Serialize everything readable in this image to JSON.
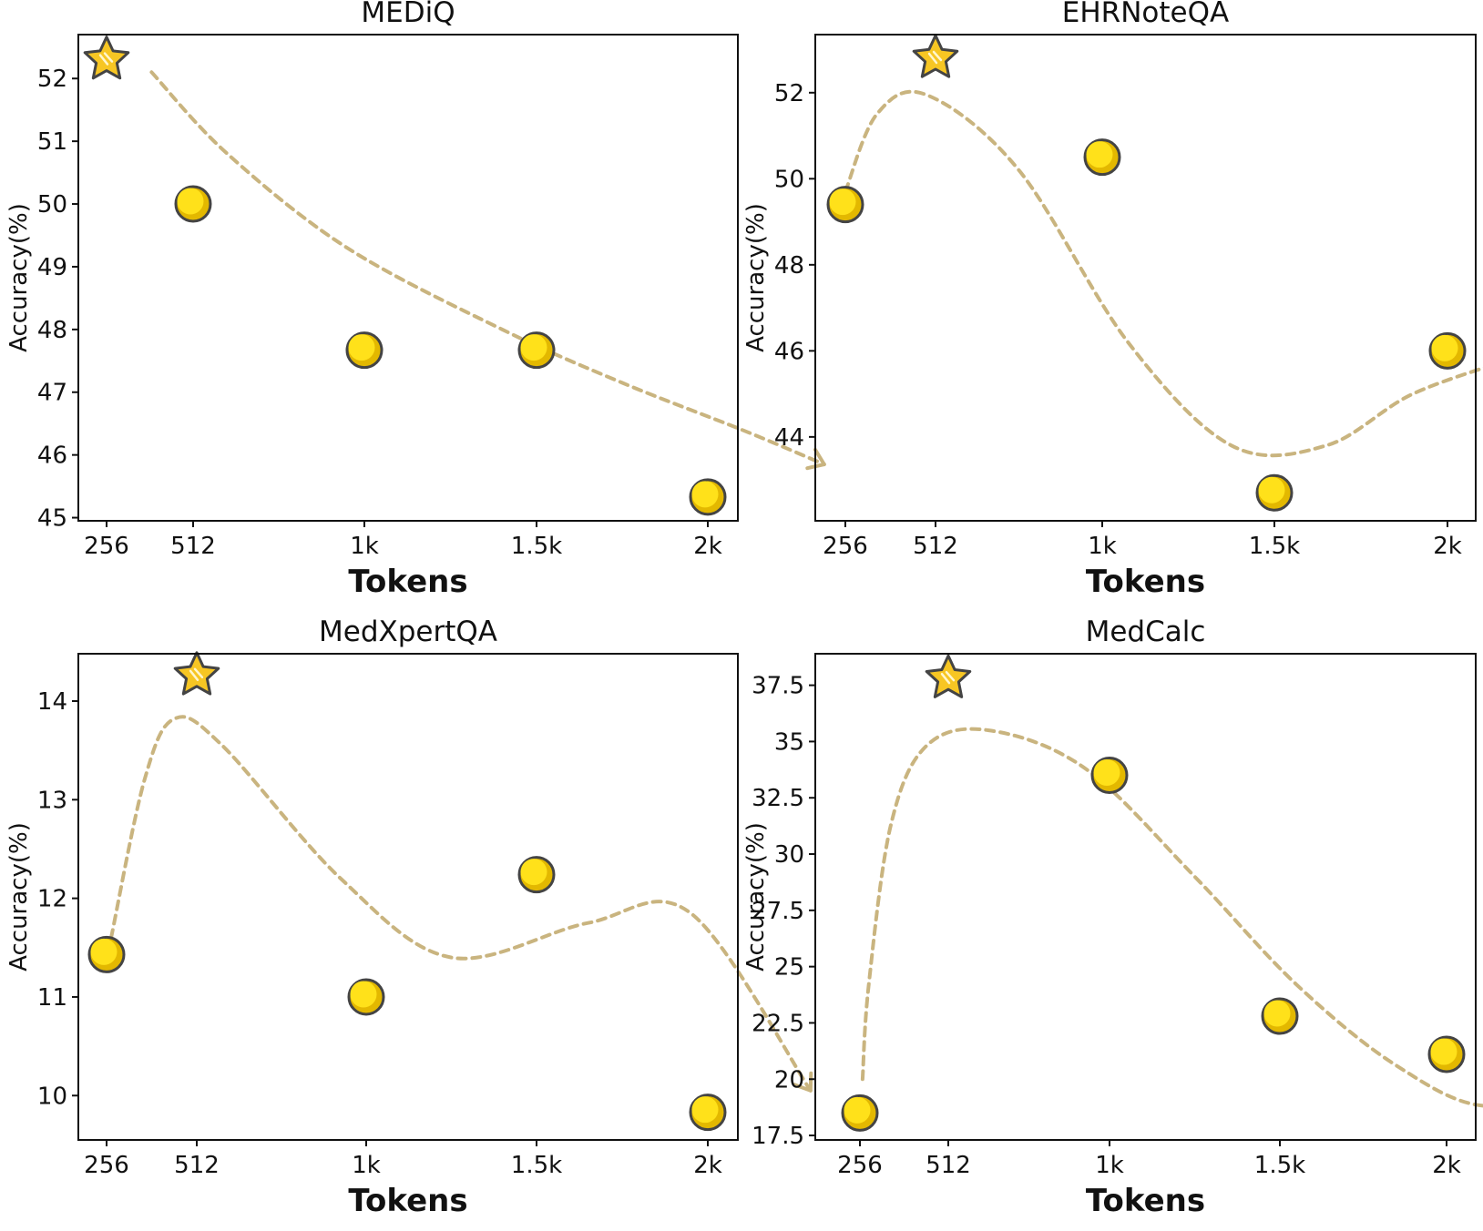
{
  "chart_data": [
    {
      "type": "scatter",
      "title": "MEDiQ",
      "xlabel": "Tokens",
      "ylabel": "Accuracy(%)",
      "categories": [
        "256",
        "512",
        "1k",
        "1.5k",
        "2k"
      ],
      "values": [
        52.3,
        50.0,
        47.67,
        47.67,
        45.33
      ],
      "best_index": 0,
      "ylim": [
        44.95,
        52.7
      ],
      "yticks": [
        45,
        46,
        47,
        48,
        49,
        50,
        51,
        52
      ],
      "ytick_labels": [
        "45",
        "46",
        "47",
        "48",
        "49",
        "50",
        "51",
        "52"
      ],
      "trend": [
        [
          0.52,
          52.1
        ],
        [
          1.2,
          50.8
        ],
        [
          1.9,
          49.3
        ],
        [
          2.8,
          48.0
        ],
        [
          3.5,
          47.15
        ],
        [
          4.2,
          46.4
        ],
        [
          4.68,
          45.85
        ]
      ]
    },
    {
      "type": "scatter",
      "title": "EHRNoteQA",
      "xlabel": "Tokens",
      "ylabel": "Accuracy(%)",
      "categories": [
        "256",
        "512",
        "1k",
        "1.5k",
        "2k"
      ],
      "values": [
        49.4,
        52.8,
        50.5,
        42.7,
        46.0
      ],
      "best_index": 1,
      "ylim": [
        42.05,
        53.35
      ],
      "yticks": [
        44,
        46,
        48,
        50,
        52
      ],
      "ytick_labels": [
        "44",
        "46",
        "48",
        "50",
        "52"
      ],
      "trend": [
        [
          0.0,
          49.7
        ],
        [
          0.35,
          51.5
        ],
        [
          0.9,
          51.95
        ],
        [
          1.5,
          50.2
        ],
        [
          2.15,
          46.2
        ],
        [
          2.75,
          43.8
        ],
        [
          3.3,
          43.8
        ],
        [
          3.8,
          45.0
        ],
        [
          4.4,
          45.85
        ]
      ]
    },
    {
      "type": "scatter",
      "title": "MedXpertQA",
      "xlabel": "Tokens",
      "ylabel": "Accuracy(%)",
      "categories": [
        "256",
        "512",
        "1k",
        "1.5k",
        "2k"
      ],
      "values": [
        11.43,
        14.26,
        11.0,
        12.24,
        9.83
      ],
      "best_index": 1,
      "ylim": [
        9.55,
        14.48
      ],
      "yticks": [
        10,
        11,
        12,
        13,
        14
      ],
      "ytick_labels": [
        "10",
        "11",
        "12",
        "13",
        "14"
      ],
      "trend": [
        [
          0.05,
          11.6
        ],
        [
          0.42,
          13.2
        ],
        [
          0.75,
          13.82
        ],
        [
          1.15,
          13.55
        ],
        [
          1.85,
          12.2
        ],
        [
          2.5,
          11.4
        ],
        [
          3.3,
          11.75
        ],
        [
          3.9,
          11.85
        ],
        [
          4.6,
          10.05
        ]
      ]
    },
    {
      "type": "scatter",
      "title": "MedCalc",
      "xlabel": "Tokens",
      "ylabel": "Accuracy(%)",
      "categories": [
        "256",
        "512",
        "1k",
        "1.5k",
        "2k"
      ],
      "values": [
        18.5,
        37.8,
        33.5,
        22.8,
        21.1
      ],
      "best_index": 1,
      "ylim": [
        17.3,
        38.9
      ],
      "yticks": [
        17.5,
        20,
        22.5,
        25,
        27.5,
        30,
        32.5,
        35,
        37.5
      ],
      "ytick_labels": [
        "17.5",
        "20",
        "22.5",
        "25",
        "27.5",
        "30",
        "32.5",
        "35",
        "37.5"
      ],
      "trend": [
        [
          0.03,
          20.0
        ],
        [
          0.1,
          24.2
        ],
        [
          0.35,
          31.3
        ],
        [
          0.75,
          34.8
        ],
        [
          1.25,
          35.5
        ],
        [
          1.85,
          33.8
        ],
        [
          2.5,
          29.0
        ],
        [
          3.1,
          24.2
        ],
        [
          3.7,
          20.6
        ],
        [
          4.25,
          18.8
        ],
        [
          4.85,
          20.2
        ]
      ]
    }
  ]
}
